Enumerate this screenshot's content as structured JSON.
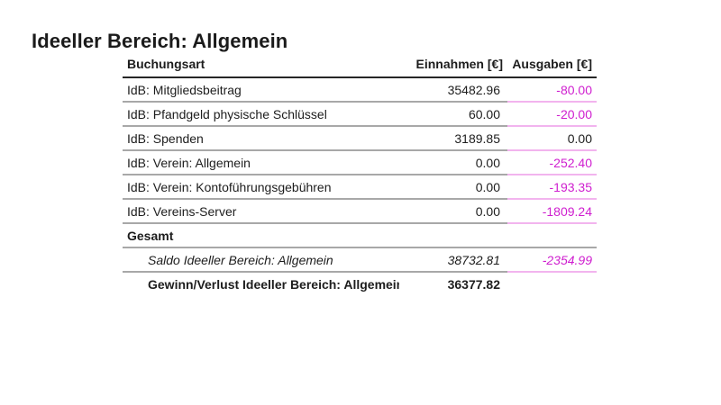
{
  "title": "Ideeller Bereich: Allgemein",
  "table": {
    "columns": {
      "buchungsart": "Buchungsart",
      "einnahmen": "Einnahmen [€]",
      "ausgaben": "Ausgaben [€]"
    },
    "rows": [
      {
        "buchungsart": "IdB: Mitgliedsbeitrag",
        "einnahmen": "35482.96",
        "ausgaben": "-80.00"
      },
      {
        "buchungsart": "IdB: Pfandgeld physische Schlüssel",
        "einnahmen": "60.00",
        "ausgaben": "-20.00"
      },
      {
        "buchungsart": "IdB: Spenden",
        "einnahmen": "3189.85",
        "ausgaben": "0.00"
      },
      {
        "buchungsart": "IdB: Verein: Allgemein",
        "einnahmen": "0.00",
        "ausgaben": "-252.40"
      },
      {
        "buchungsart": "IdB: Verein: Kontoführungsgebühren",
        "einnahmen": "0.00",
        "ausgaben": "-193.35"
      },
      {
        "buchungsart": "IdB: Vereins-Server",
        "einnahmen": "0.00",
        "ausgaben": "-1809.24"
      }
    ],
    "section_label": "Gesamt",
    "saldo": {
      "label": "Saldo Ideeller Bereich: Allgemein",
      "einnahmen": "38732.81",
      "ausgaben": "-2354.99"
    },
    "result": {
      "label": "Gewinn/Verlust Ideeller Bereich: Allgemein",
      "einnahmen": "36377.82",
      "ausgaben": ""
    }
  },
  "colors": {
    "negative_value": "#cf1ecf",
    "ausgaben_border": "#f2b4ee",
    "row_border": "#a8a8a8",
    "header_border": "#262626"
  }
}
